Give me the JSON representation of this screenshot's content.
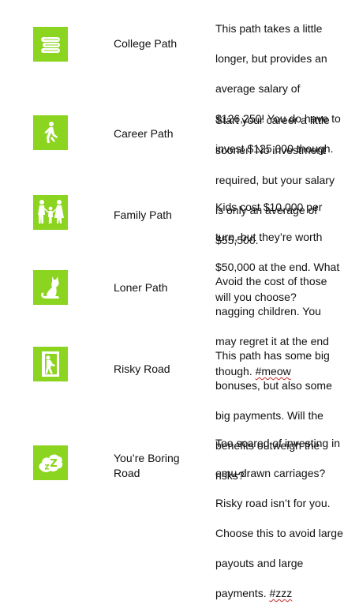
{
  "accent_color": "#8bd41f",
  "paths": [
    {
      "icon": "books-icon",
      "name_lines": [
        "College Path"
      ],
      "description_lines": [
        "This path takes a little",
        "longer, but provides an",
        "average salary of",
        "$126,250! You do have to",
        "invest $125,000 though."
      ],
      "tag": ""
    },
    {
      "icon": "walking-person-icon",
      "name_lines": [
        "Career Path"
      ],
      "description_lines": [
        "Start your career a little",
        "sooner! No investment",
        "required, but your salary",
        "is only an average of",
        "$55,500."
      ],
      "tag": ""
    },
    {
      "icon": "family-icon",
      "name_lines": [
        "Family Path"
      ],
      "description_lines": [
        "Kids cost $10,000 per",
        "turn, but they’re worth",
        "$50,000 at the end. What",
        "will you choose?"
      ],
      "tag": ""
    },
    {
      "icon": "cat-icon",
      "name_lines": [
        "Loner Path"
      ],
      "description_lines": [
        "Avoid the cost of those",
        "nagging children. You",
        "may regret it at the end",
        "though. "
      ],
      "tag": "#meow"
    },
    {
      "icon": "person-in-doorway-icon",
      "name_lines": [
        "Risky Road"
      ],
      "description_lines": [
        "This path has some big",
        "bonuses, but also some",
        "big payments. Will the",
        "benefits outweigh the",
        "risks?"
      ],
      "tag": ""
    },
    {
      "icon": "sleeping-zzz-icon",
      "name_lines": [
        "You’re Boring",
        "Road"
      ],
      "description_lines": [
        "Too scared of investing in",
        "emu-drawn carriages?",
        "Risky road isn’t for you.",
        "Choose this to avoid large",
        "payouts and large",
        "payments. "
      ],
      "tag": "#zzz"
    }
  ]
}
